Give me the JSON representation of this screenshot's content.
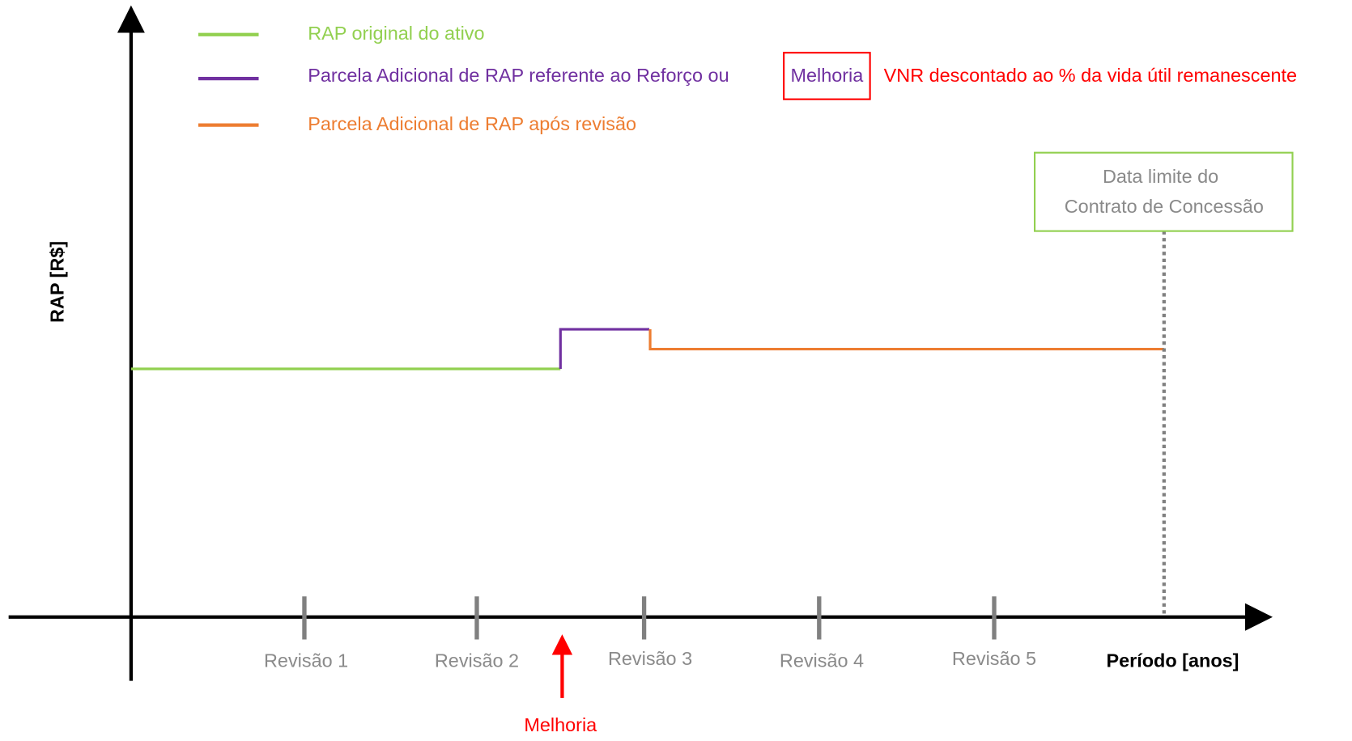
{
  "legend": [
    {
      "label": "RAP original do ativo"
    },
    {
      "label": "Parcela Adicional de RAP referente ao Reforço ou",
      "highlight": "Melhoria",
      "note": "VNR descontado ao % da vida útil remanescente"
    },
    {
      "label": "Parcela Adicional de RAP após revisão"
    }
  ],
  "y_axis_label": "RAP [R$]",
  "x_axis_label": "Período [anos]",
  "revisions": [
    "Revisão 1",
    "Revisão 2",
    "Revisão 3",
    "Revisão 4",
    "Revisão 5"
  ],
  "event": "Melhoria",
  "deadline": [
    "Data limite do",
    "Contrato de Concessão"
  ]
}
